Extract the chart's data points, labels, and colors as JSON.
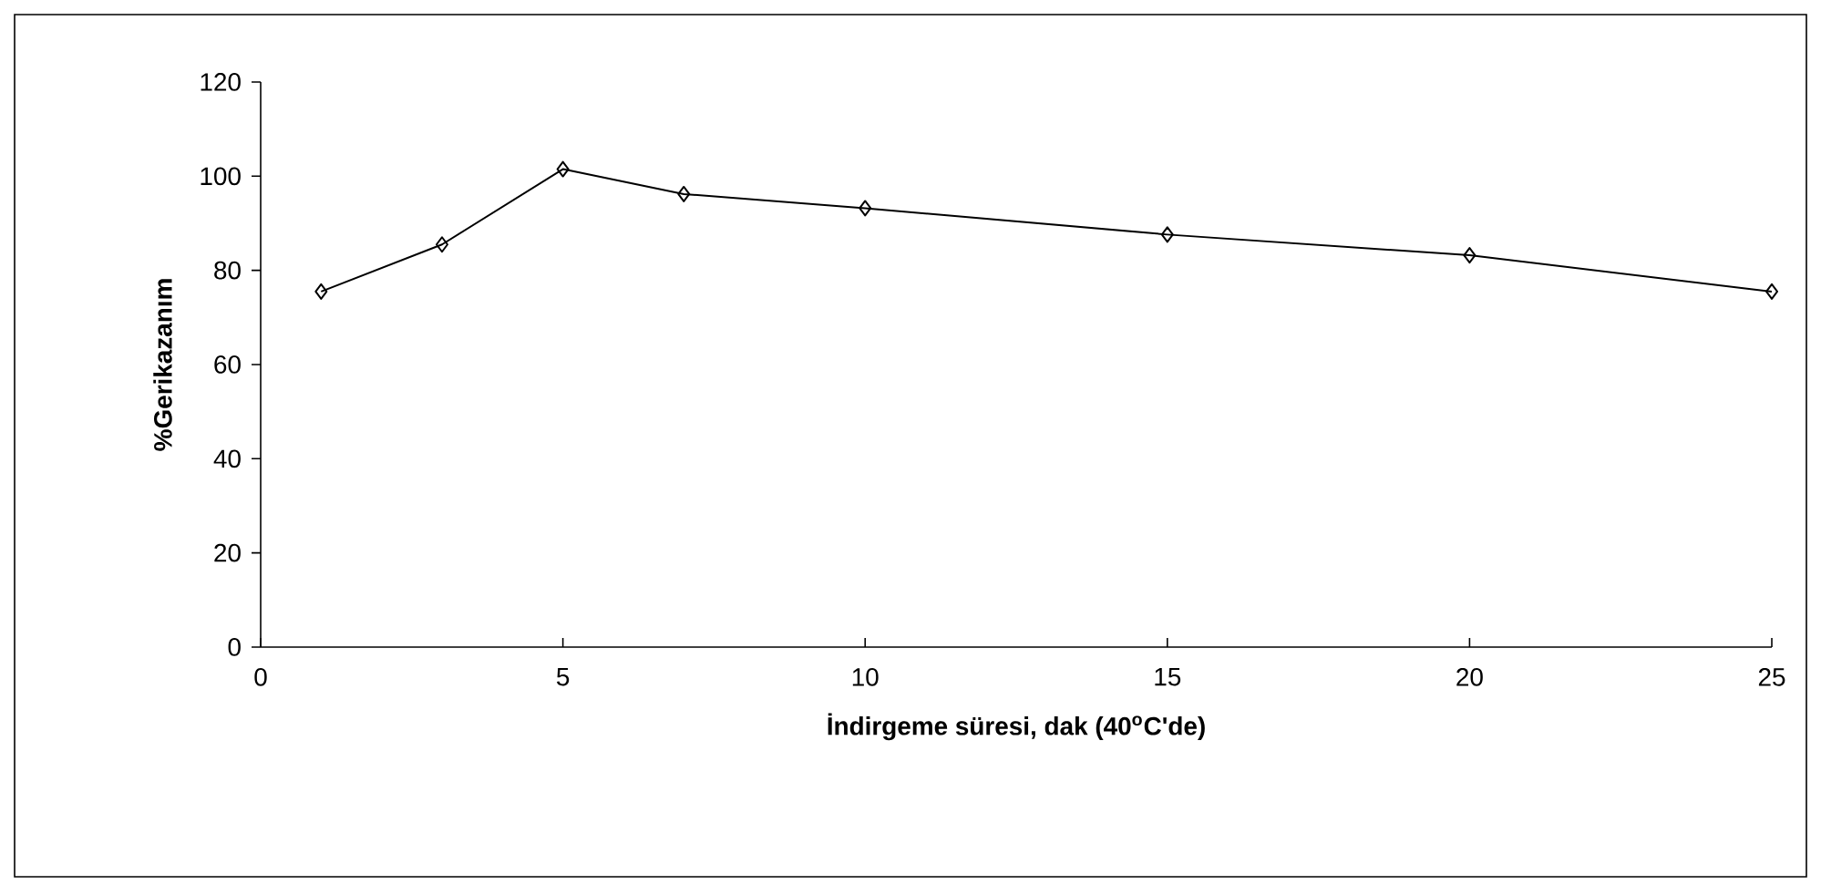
{
  "chart_data": {
    "type": "line",
    "xlabel": "İndirgeme süresi, dak (40$^{o}$C'de)",
    "ylabel": "%Gerikazanım",
    "x": [
      1,
      3,
      5,
      7,
      10,
      15,
      20,
      25
    ],
    "series": [
      {
        "color": "#000000",
        "values": [
          75.5,
          85.5,
          101.5,
          96.2,
          93.2,
          87.6,
          83.2,
          75.5
        ]
      }
    ],
    "xlim": [
      0,
      25
    ],
    "ylim": [
      0,
      120
    ],
    "xticks": [
      0,
      5,
      10,
      15,
      20,
      25
    ],
    "yticks": [
      0,
      20,
      40,
      60,
      80,
      100,
      120
    ],
    "marker": "diamond",
    "line_style": "solid",
    "grid": false,
    "legend": false
  }
}
